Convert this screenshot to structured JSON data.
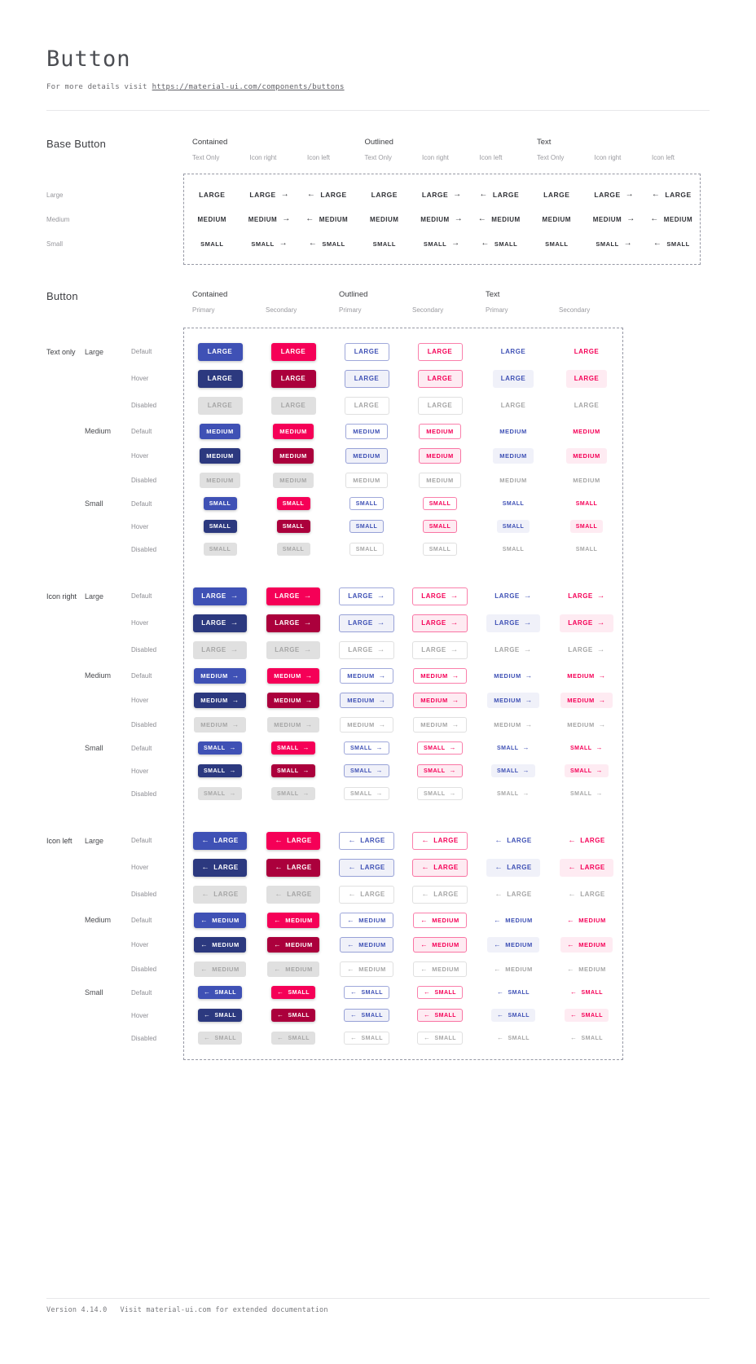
{
  "page": {
    "title": "Button",
    "subtitle_prefix": "For more details visit",
    "subtitle_link": "https://material-ui.com/components/buttons",
    "footer": {
      "version": "Version 4.14.0",
      "note": "Visit material-ui.com for extended documentation"
    }
  },
  "icons": {
    "arrow_right": "→",
    "arrow_left": "←"
  },
  "colors": {
    "primary": "#3f51b5",
    "primary_hover": "#2c397f",
    "secondary": "#f50057",
    "secondary_hover": "#ab003c",
    "disabled_bg": "#e0e0e0",
    "disabled_text": "#a6a6a6",
    "outlined_primary_border": "rgba(63,81,181,0.5)",
    "outlined_secondary_border": "rgba(245,0,87,0.5)",
    "hover_tint_primary": "rgba(63,81,181,0.08)",
    "hover_tint_secondary": "rgba(245,0,87,0.08)"
  },
  "base_section": {
    "heading": "Base Button",
    "groups": [
      "Contained",
      "Outlined",
      "Text"
    ],
    "subcolumns": [
      "Text Only",
      "Icon right",
      "Icon left"
    ],
    "rows": [
      {
        "label": "Large",
        "text": "LARGE"
      },
      {
        "label": "Medium",
        "text": "MEDIUM"
      },
      {
        "label": "Small",
        "text": "SMALL"
      }
    ]
  },
  "button_section": {
    "heading": "Button",
    "groups": [
      "Contained",
      "Outlined",
      "Text"
    ],
    "subcolumns": [
      "Primary",
      "Secondary"
    ],
    "row_groups": [
      "Text only",
      "Icon right",
      "Icon left"
    ],
    "sizes": [
      {
        "label": "Large",
        "text": "LARGE"
      },
      {
        "label": "Medium",
        "text": "MEDIUM"
      },
      {
        "label": "Small",
        "text": "SMALL"
      }
    ],
    "states": [
      "Default",
      "Hover",
      "Disabled"
    ]
  }
}
